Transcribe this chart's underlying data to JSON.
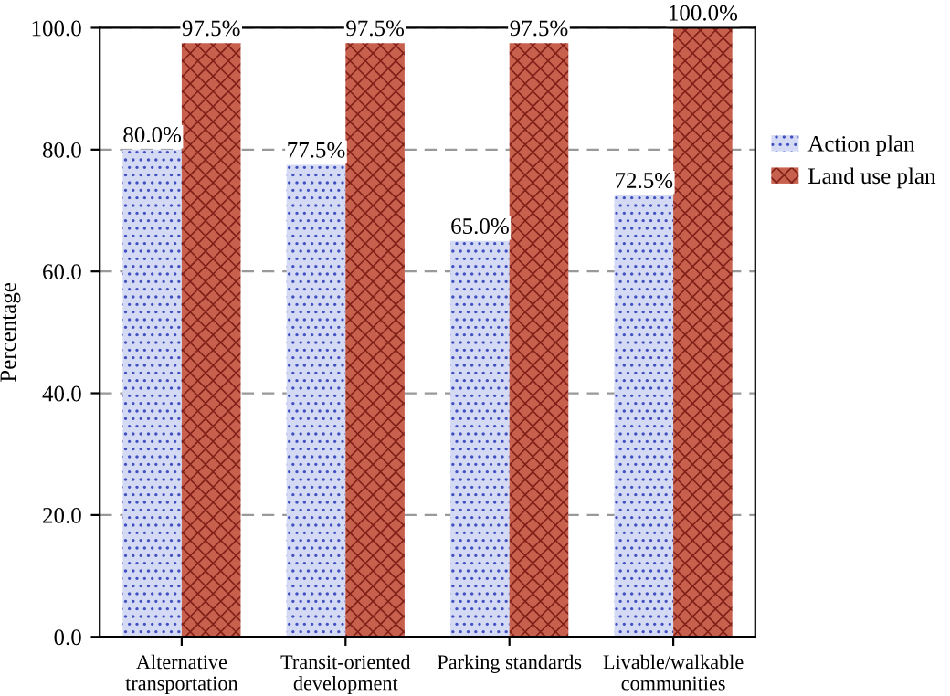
{
  "chart_data": {
    "type": "bar",
    "ylabel": "Percentage",
    "categories": [
      "Alternative\ntransportation",
      "Transit-oriented\ndevelopment",
      "Parking standards",
      "Livable/walkable\ncommunities"
    ],
    "series": [
      {
        "name": "Action plan",
        "color": "#d4daf4",
        "values": [
          80.0,
          77.5,
          65.0,
          72.5
        ],
        "value_labels": [
          "80.0%",
          "77.5%",
          "65.0%",
          "72.5%"
        ]
      },
      {
        "name": "Land use plan",
        "color": "#c8604e",
        "values": [
          97.5,
          97.5,
          97.5,
          100.0
        ],
        "value_labels": [
          "97.5%",
          "97.5%",
          "97.5%",
          "100.0%"
        ]
      }
    ],
    "ylim": [
      0,
      100
    ],
    "yticks": [
      {
        "value": 0,
        "label": "0.0"
      },
      {
        "value": 20,
        "label": "20.0"
      },
      {
        "value": 40,
        "label": "40.0"
      },
      {
        "value": 60,
        "label": "60.0"
      },
      {
        "value": 80,
        "label": "80.0"
      },
      {
        "value": 100,
        "label": "100.0"
      }
    ],
    "grid": "y",
    "legend": "right"
  }
}
